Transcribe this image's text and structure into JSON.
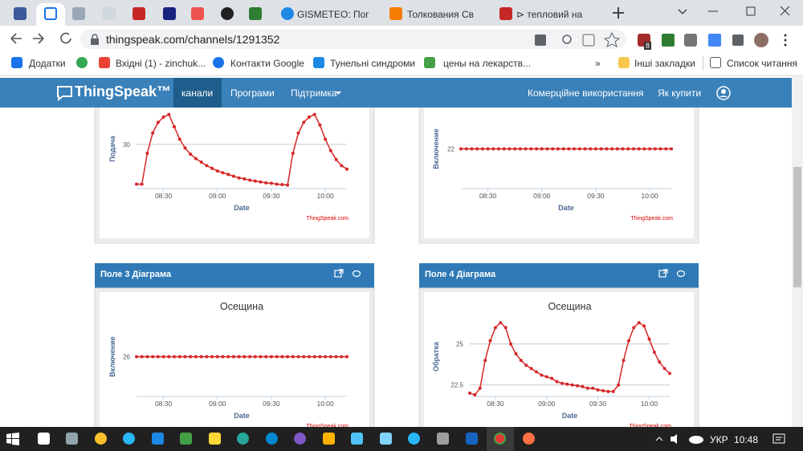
{
  "browser": {
    "tabs": [
      "GISMETEO: Пог",
      "Толкования Св",
      "⊳ тепловий на"
    ],
    "url": "thingspeak.com/channels/1291352",
    "extension_badge": "8",
    "bookmarks": [
      "Додатки",
      "Вхідні (1) - zinchuk...",
      "Контакти Google",
      "Тунельні синдроми",
      "цены на лекарств..."
    ],
    "more": "»",
    "other_bookmarks": "Інші закладки",
    "reading_list": "Список читання"
  },
  "navbar": {
    "brand": "ThingSpeak™",
    "items": [
      "канали",
      "Програми",
      "Підтримка"
    ],
    "right_items": [
      "Комерційне використання",
      "Як купити"
    ]
  },
  "panels": [
    {
      "header": "Поле 3 Діаграма"
    },
    {
      "header": "Поле 4 Діаграма"
    }
  ],
  "chart_data": [
    {
      "type": "line",
      "y_label": "Подача",
      "x_label": "Date",
      "credits": "ThingSpeak.com",
      "x": [
        "08:15",
        "08:18",
        "08:21",
        "08:24",
        "08:27",
        "08:30",
        "08:33",
        "08:36",
        "08:39",
        "08:42",
        "08:45",
        "08:48",
        "08:51",
        "08:54",
        "08:57",
        "09:00",
        "09:03",
        "09:06",
        "09:09",
        "09:12",
        "09:15",
        "09:18",
        "09:21",
        "09:24",
        "09:27",
        "09:30",
        "09:33",
        "09:36",
        "09:39",
        "09:42",
        "09:45",
        "09:48",
        "09:51",
        "09:54",
        "09:57",
        "10:00",
        "10:03",
        "10:06",
        "10:09",
        "10:12"
      ],
      "values": [
        25.5,
        25.5,
        29,
        31.3,
        32.5,
        33.1,
        33.4,
        32,
        30.6,
        29.6,
        28.9,
        28.4,
        28,
        27.6,
        27.3,
        27,
        26.8,
        26.6,
        26.4,
        26.2,
        26.1,
        25.95,
        25.85,
        25.75,
        25.65,
        25.6,
        25.5,
        25.45,
        25.4,
        29,
        31.3,
        32.5,
        33.1,
        33.4,
        32.2,
        30.6,
        29.3,
        28.3,
        27.6,
        27.2
      ],
      "color": "#d62728",
      "xlim": [
        "08:15",
        "10:12"
      ],
      "xticks": [
        "08:30",
        "09:00",
        "09:30",
        "10:00"
      ],
      "ylim": [
        25,
        34
      ],
      "yticks": [
        30
      ],
      "grid": true
    },
    {
      "type": "line",
      "y_label": "Включение",
      "x_label": "Date",
      "credits": "ThingSpeak.com",
      "x": [
        "08:15",
        "08:18",
        "08:21",
        "08:24",
        "08:27",
        "08:30",
        "08:33",
        "08:36",
        "08:39",
        "08:42",
        "08:45",
        "08:48",
        "08:51",
        "08:54",
        "08:57",
        "09:00",
        "09:03",
        "09:06",
        "09:09",
        "09:12",
        "09:15",
        "09:18",
        "09:21",
        "09:24",
        "09:27",
        "09:30",
        "09:33",
        "09:36",
        "09:39",
        "09:42",
        "09:45",
        "09:48",
        "09:51",
        "09:54",
        "09:57",
        "10:00",
        "10:03",
        "10:06",
        "10:09",
        "10:12"
      ],
      "values": [
        22,
        22,
        22,
        22,
        22,
        22,
        22,
        22,
        22,
        22,
        22,
        22,
        22,
        22,
        22,
        22,
        22,
        22,
        22,
        22,
        22,
        22,
        22,
        22,
        22,
        22,
        22,
        22,
        22,
        22,
        22,
        22,
        22,
        22,
        22,
        22,
        22,
        22,
        22,
        22
      ],
      "color": "#d62728",
      "xlim": [
        "08:15",
        "10:12"
      ],
      "xticks": [
        "08:30",
        "09:00",
        "09:30",
        "10:00"
      ],
      "ylim": [
        21,
        23
      ],
      "yticks": [
        22
      ],
      "grid": true
    },
    {
      "type": "line",
      "title": "Осещина",
      "y_label": "Включение",
      "x_label": "Date",
      "credits": "ThingSpeak.com",
      "x": [
        "08:15",
        "08:18",
        "08:21",
        "08:24",
        "08:27",
        "08:30",
        "08:33",
        "08:36",
        "08:39",
        "08:42",
        "08:45",
        "08:48",
        "08:51",
        "08:54",
        "08:57",
        "09:00",
        "09:03",
        "09:06",
        "09:09",
        "09:12",
        "09:15",
        "09:18",
        "09:21",
        "09:24",
        "09:27",
        "09:30",
        "09:33",
        "09:36",
        "09:39",
        "09:42",
        "09:45",
        "09:48",
        "09:51",
        "09:54",
        "09:57",
        "10:00",
        "10:03",
        "10:06",
        "10:09",
        "10:12"
      ],
      "values": [
        26,
        26,
        26,
        26,
        26,
        26,
        26,
        26,
        26,
        26,
        26,
        26,
        26,
        26,
        26,
        26,
        26,
        26,
        26,
        26,
        26,
        26,
        26,
        26,
        26,
        26,
        26,
        26,
        26,
        26,
        26,
        26,
        26,
        26,
        26,
        26,
        26,
        26,
        26,
        26
      ],
      "color": "#d62728",
      "xlim": [
        "08:15",
        "10:12"
      ],
      "xticks": [
        "08:30",
        "09:00",
        "09:30",
        "10:00"
      ],
      "ylim": [
        25,
        27
      ],
      "yticks": [
        26
      ],
      "grid": true
    },
    {
      "type": "line",
      "title": "Осещина",
      "y_label": "Обратка",
      "x_label": "Date",
      "credits": "ThingSpeak.com",
      "x": [
        "08:15",
        "08:18",
        "08:21",
        "08:24",
        "08:27",
        "08:30",
        "08:33",
        "08:36",
        "08:39",
        "08:42",
        "08:45",
        "08:48",
        "08:51",
        "08:54",
        "08:57",
        "09:00",
        "09:03",
        "09:06",
        "09:09",
        "09:12",
        "09:15",
        "09:18",
        "09:21",
        "09:24",
        "09:27",
        "09:30",
        "09:33",
        "09:36",
        "09:39",
        "09:42",
        "09:45",
        "09:48",
        "09:51",
        "09:54",
        "09:57",
        "10:00",
        "10:03",
        "10:06",
        "10:09",
        "10:12"
      ],
      "values": [
        22.0,
        21.9,
        22.3,
        24,
        25.2,
        26,
        26.3,
        26,
        25,
        24.4,
        24,
        23.7,
        23.5,
        23.3,
        23.1,
        23,
        22.9,
        22.7,
        22.6,
        22.55,
        22.5,
        22.45,
        22.4,
        22.3,
        22.3,
        22.2,
        22.15,
        22.1,
        22.1,
        22.5,
        24,
        25.2,
        26,
        26.3,
        26.1,
        25.3,
        24.5,
        23.9,
        23.5,
        23.2
      ],
      "color": "#d62728",
      "xlim": [
        "08:15",
        "10:12"
      ],
      "xticks": [
        "08:30",
        "09:00",
        "09:30",
        "10:00"
      ],
      "ylim": [
        21.8,
        26.65
      ],
      "yticks": [
        25,
        22.5
      ],
      "grid": true
    }
  ],
  "taskbar": {
    "language": "УКР",
    "time": "10:48"
  }
}
